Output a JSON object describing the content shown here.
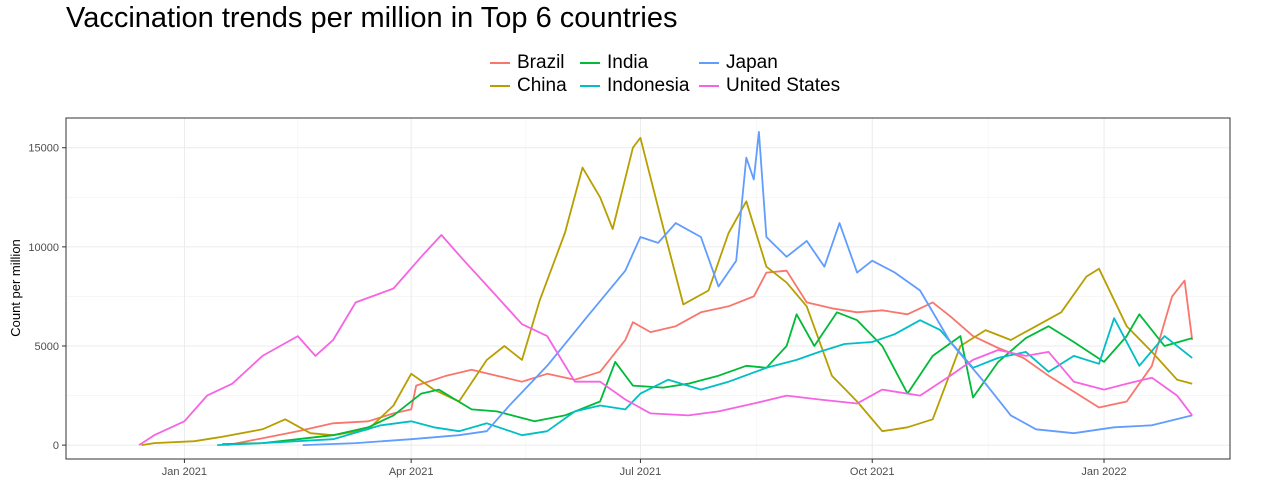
{
  "chart_data": {
    "type": "line",
    "title": "Vaccination trends per million in Top 6 countries",
    "xlabel": "",
    "ylabel": "Count per million",
    "x_axis_type": "date",
    "xlim": [
      "2020-11-15",
      "2022-02-20"
    ],
    "ylim": [
      -700,
      16500
    ],
    "x_ticks": [
      {
        "date": "2021-01-01",
        "label": "Jan 2021"
      },
      {
        "date": "2021-04-01",
        "label": "Apr 2021"
      },
      {
        "date": "2021-07-01",
        "label": "Jul 2021"
      },
      {
        "date": "2021-10-01",
        "label": "Oct 2021"
      },
      {
        "date": "2022-01-01",
        "label": "Jan 2022"
      }
    ],
    "y_ticks": [
      0,
      5000,
      10000,
      15000
    ],
    "grid": true,
    "legend_position": "top",
    "series": [
      {
        "name": "Brazil",
        "color": "#F8766D",
        "points": [
          [
            "2021-01-18",
            0
          ],
          [
            "2021-01-30",
            300
          ],
          [
            "2021-02-15",
            700
          ],
          [
            "2021-03-01",
            1100
          ],
          [
            "2021-03-15",
            1200
          ],
          [
            "2021-03-25",
            1600
          ],
          [
            "2021-04-01",
            1800
          ],
          [
            "2021-04-03",
            3000
          ],
          [
            "2021-04-15",
            3500
          ],
          [
            "2021-04-25",
            3800
          ],
          [
            "2021-05-05",
            3500
          ],
          [
            "2021-05-15",
            3200
          ],
          [
            "2021-05-25",
            3600
          ],
          [
            "2021-06-05",
            3300
          ],
          [
            "2021-06-15",
            3700
          ],
          [
            "2021-06-25",
            5300
          ],
          [
            "2021-06-28",
            6200
          ],
          [
            "2021-07-05",
            5700
          ],
          [
            "2021-07-15",
            6000
          ],
          [
            "2021-07-25",
            6700
          ],
          [
            "2021-08-05",
            7000
          ],
          [
            "2021-08-15",
            7500
          ],
          [
            "2021-08-20",
            8700
          ],
          [
            "2021-08-28",
            8800
          ],
          [
            "2021-09-05",
            7200
          ],
          [
            "2021-09-15",
            6900
          ],
          [
            "2021-09-25",
            6700
          ],
          [
            "2021-10-05",
            6800
          ],
          [
            "2021-10-15",
            6600
          ],
          [
            "2021-10-25",
            7200
          ],
          [
            "2021-11-01",
            6500
          ],
          [
            "2021-11-10",
            5500
          ],
          [
            "2021-11-20",
            4900
          ],
          [
            "2021-11-30",
            4400
          ],
          [
            "2021-12-10",
            3500
          ],
          [
            "2021-12-20",
            2700
          ],
          [
            "2021-12-30",
            1900
          ],
          [
            "2022-01-10",
            2200
          ],
          [
            "2022-01-20",
            4000
          ],
          [
            "2022-01-28",
            7500
          ],
          [
            "2022-02-02",
            8300
          ],
          [
            "2022-02-05",
            5300
          ]
        ]
      },
      {
        "name": "China",
        "color": "#B79F00",
        "points": [
          [
            "2020-12-15",
            0
          ],
          [
            "2020-12-20",
            100
          ],
          [
            "2021-01-05",
            200
          ],
          [
            "2021-01-15",
            400
          ],
          [
            "2021-02-01",
            800
          ],
          [
            "2021-02-10",
            1300
          ],
          [
            "2021-02-20",
            600
          ],
          [
            "2021-03-01",
            500
          ],
          [
            "2021-03-15",
            800
          ],
          [
            "2021-03-25",
            2000
          ],
          [
            "2021-04-01",
            3600
          ],
          [
            "2021-04-10",
            2800
          ],
          [
            "2021-04-20",
            2200
          ],
          [
            "2021-05-01",
            4300
          ],
          [
            "2021-05-08",
            5000
          ],
          [
            "2021-05-15",
            4300
          ],
          [
            "2021-05-22",
            7300
          ],
          [
            "2021-06-01",
            10700
          ],
          [
            "2021-06-08",
            14000
          ],
          [
            "2021-06-15",
            12500
          ],
          [
            "2021-06-20",
            10900
          ],
          [
            "2021-06-28",
            15000
          ],
          [
            "2021-07-01",
            15500
          ],
          [
            "2021-07-10",
            11000
          ],
          [
            "2021-07-18",
            7100
          ],
          [
            "2021-07-28",
            7800
          ],
          [
            "2021-08-05",
            10700
          ],
          [
            "2021-08-12",
            12300
          ],
          [
            "2021-08-20",
            9000
          ],
          [
            "2021-08-28",
            8200
          ],
          [
            "2021-09-05",
            7000
          ],
          [
            "2021-09-15",
            3500
          ],
          [
            "2021-09-25",
            2200
          ],
          [
            "2021-10-05",
            700
          ],
          [
            "2021-10-15",
            900
          ],
          [
            "2021-10-25",
            1300
          ],
          [
            "2021-11-05",
            5000
          ],
          [
            "2021-11-15",
            5800
          ],
          [
            "2021-11-25",
            5300
          ],
          [
            "2021-12-05",
            6000
          ],
          [
            "2021-12-15",
            6700
          ],
          [
            "2021-12-25",
            8500
          ],
          [
            "2021-12-30",
            8900
          ],
          [
            "2022-01-10",
            6000
          ],
          [
            "2022-01-20",
            4700
          ],
          [
            "2022-01-30",
            3300
          ],
          [
            "2022-02-05",
            3100
          ]
        ]
      },
      {
        "name": "India",
        "color": "#00BA38",
        "points": [
          [
            "2021-01-16",
            50
          ],
          [
            "2021-02-01",
            100
          ],
          [
            "2021-02-15",
            300
          ],
          [
            "2021-03-01",
            500
          ],
          [
            "2021-03-15",
            900
          ],
          [
            "2021-03-25",
            1500
          ],
          [
            "2021-04-05",
            2600
          ],
          [
            "2021-04-12",
            2800
          ],
          [
            "2021-04-25",
            1800
          ],
          [
            "2021-05-05",
            1700
          ],
          [
            "2021-05-20",
            1200
          ],
          [
            "2021-06-01",
            1500
          ],
          [
            "2021-06-15",
            2200
          ],
          [
            "2021-06-21",
            4200
          ],
          [
            "2021-06-28",
            3000
          ],
          [
            "2021-07-10",
            2900
          ],
          [
            "2021-07-20",
            3100
          ],
          [
            "2021-08-01",
            3500
          ],
          [
            "2021-08-12",
            4000
          ],
          [
            "2021-08-20",
            3900
          ],
          [
            "2021-08-28",
            5000
          ],
          [
            "2021-09-01",
            6600
          ],
          [
            "2021-09-08",
            5000
          ],
          [
            "2021-09-17",
            6700
          ],
          [
            "2021-09-25",
            6300
          ],
          [
            "2021-10-05",
            5000
          ],
          [
            "2021-10-15",
            2600
          ],
          [
            "2021-10-25",
            4500
          ],
          [
            "2021-11-05",
            5500
          ],
          [
            "2021-11-10",
            2400
          ],
          [
            "2021-11-20",
            4200
          ],
          [
            "2021-12-01",
            5400
          ],
          [
            "2021-12-10",
            6000
          ],
          [
            "2021-12-20",
            5200
          ],
          [
            "2022-01-01",
            4200
          ],
          [
            "2022-01-10",
            5500
          ],
          [
            "2022-01-15",
            6600
          ],
          [
            "2022-01-25",
            5000
          ],
          [
            "2022-02-05",
            5400
          ]
        ]
      },
      {
        "name": "Indonesia",
        "color": "#00BFC4",
        "points": [
          [
            "2021-01-14",
            0
          ],
          [
            "2021-02-01",
            100
          ],
          [
            "2021-03-01",
            300
          ],
          [
            "2021-03-20",
            1000
          ],
          [
            "2021-04-01",
            1200
          ],
          [
            "2021-04-10",
            900
          ],
          [
            "2021-04-20",
            700
          ],
          [
            "2021-05-01",
            1100
          ],
          [
            "2021-05-15",
            500
          ],
          [
            "2021-05-25",
            700
          ],
          [
            "2021-06-05",
            1700
          ],
          [
            "2021-06-15",
            2000
          ],
          [
            "2021-06-25",
            1800
          ],
          [
            "2021-07-01",
            2600
          ],
          [
            "2021-07-12",
            3300
          ],
          [
            "2021-07-25",
            2800
          ],
          [
            "2021-08-05",
            3200
          ],
          [
            "2021-08-20",
            3900
          ],
          [
            "2021-09-01",
            4300
          ],
          [
            "2021-09-10",
            4700
          ],
          [
            "2021-09-20",
            5100
          ],
          [
            "2021-10-01",
            5200
          ],
          [
            "2021-10-10",
            5600
          ],
          [
            "2021-10-20",
            6300
          ],
          [
            "2021-10-28",
            5800
          ],
          [
            "2021-11-10",
            3900
          ],
          [
            "2021-11-20",
            4400
          ],
          [
            "2021-12-01",
            4700
          ],
          [
            "2021-12-10",
            3700
          ],
          [
            "2021-12-20",
            4500
          ],
          [
            "2021-12-30",
            4100
          ],
          [
            "2022-01-05",
            6400
          ],
          [
            "2022-01-15",
            4000
          ],
          [
            "2022-01-25",
            5500
          ],
          [
            "2022-02-05",
            4400
          ]
        ]
      },
      {
        "name": "Japan",
        "color": "#619CFF",
        "points": [
          [
            "2021-02-17",
            0
          ],
          [
            "2021-03-10",
            100
          ],
          [
            "2021-04-01",
            300
          ],
          [
            "2021-04-20",
            500
          ],
          [
            "2021-05-01",
            700
          ],
          [
            "2021-05-10",
            2000
          ],
          [
            "2021-05-25",
            4000
          ],
          [
            "2021-06-10",
            6500
          ],
          [
            "2021-06-25",
            8800
          ],
          [
            "2021-07-01",
            10500
          ],
          [
            "2021-07-08",
            10200
          ],
          [
            "2021-07-15",
            11200
          ],
          [
            "2021-07-25",
            10500
          ],
          [
            "2021-08-01",
            8000
          ],
          [
            "2021-08-08",
            9300
          ],
          [
            "2021-08-12",
            14500
          ],
          [
            "2021-08-15",
            13400
          ],
          [
            "2021-08-17",
            15800
          ],
          [
            "2021-08-20",
            10500
          ],
          [
            "2021-08-28",
            9500
          ],
          [
            "2021-09-05",
            10300
          ],
          [
            "2021-09-12",
            9000
          ],
          [
            "2021-09-18",
            11200
          ],
          [
            "2021-09-25",
            8700
          ],
          [
            "2021-10-01",
            9300
          ],
          [
            "2021-10-10",
            8700
          ],
          [
            "2021-10-20",
            7800
          ],
          [
            "2021-11-01",
            5200
          ],
          [
            "2021-11-15",
            3100
          ],
          [
            "2021-11-25",
            1500
          ],
          [
            "2021-12-05",
            800
          ],
          [
            "2021-12-20",
            600
          ],
          [
            "2022-01-05",
            900
          ],
          [
            "2022-01-20",
            1000
          ],
          [
            "2022-02-05",
            1500
          ]
        ]
      },
      {
        "name": "United States",
        "color": "#F564E3",
        "points": [
          [
            "2020-12-14",
            0
          ],
          [
            "2020-12-20",
            500
          ],
          [
            "2021-01-01",
            1200
          ],
          [
            "2021-01-10",
            2500
          ],
          [
            "2021-01-20",
            3100
          ],
          [
            "2021-02-01",
            4500
          ],
          [
            "2021-02-15",
            5500
          ],
          [
            "2021-02-22",
            4500
          ],
          [
            "2021-03-01",
            5300
          ],
          [
            "2021-03-10",
            7200
          ],
          [
            "2021-03-25",
            7900
          ],
          [
            "2021-04-05",
            9500
          ],
          [
            "2021-04-13",
            10600
          ],
          [
            "2021-04-22",
            9300
          ],
          [
            "2021-05-05",
            7500
          ],
          [
            "2021-05-15",
            6100
          ],
          [
            "2021-05-25",
            5500
          ],
          [
            "2021-06-05",
            3200
          ],
          [
            "2021-06-15",
            3200
          ],
          [
            "2021-06-25",
            2300
          ],
          [
            "2021-07-05",
            1600
          ],
          [
            "2021-07-20",
            1500
          ],
          [
            "2021-08-01",
            1700
          ],
          [
            "2021-08-15",
            2100
          ],
          [
            "2021-08-28",
            2500
          ],
          [
            "2021-09-10",
            2300
          ],
          [
            "2021-09-25",
            2100
          ],
          [
            "2021-10-05",
            2800
          ],
          [
            "2021-10-20",
            2500
          ],
          [
            "2021-11-01",
            3500
          ],
          [
            "2021-11-10",
            4300
          ],
          [
            "2021-11-20",
            4800
          ],
          [
            "2021-12-01",
            4500
          ],
          [
            "2021-12-10",
            4700
          ],
          [
            "2021-12-20",
            3200
          ],
          [
            "2022-01-01",
            2800
          ],
          [
            "2022-01-10",
            3100
          ],
          [
            "2022-01-20",
            3400
          ],
          [
            "2022-01-30",
            2500
          ],
          [
            "2022-02-05",
            1500
          ]
        ]
      }
    ]
  }
}
